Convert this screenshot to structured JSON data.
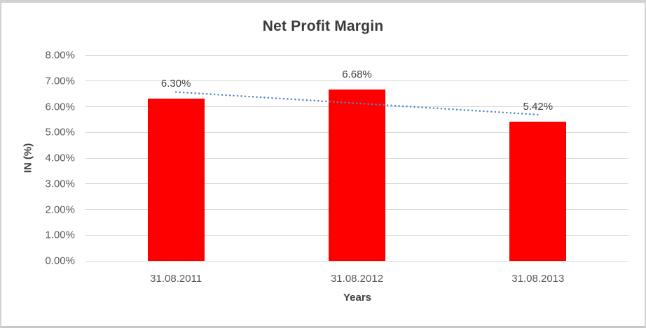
{
  "chart_data": {
    "type": "bar",
    "title": "Net Profit Margin",
    "xlabel": "Years",
    "ylabel": "IN (%)",
    "categories": [
      "31.08.2011",
      "31.08.2012",
      "31.08.2013"
    ],
    "values": [
      6.3,
      6.68,
      5.42
    ],
    "data_labels": [
      "6.30%",
      "6.68%",
      "5.42%"
    ],
    "ytick_labels": [
      "0.00%",
      "1.00%",
      "2.00%",
      "3.00%",
      "4.00%",
      "5.00%",
      "6.00%",
      "7.00%",
      "8.00%"
    ],
    "ylim": [
      0,
      8
    ],
    "ytick_step": 1,
    "grid": "horizontal",
    "legend": "none",
    "bar_color": "#ff0000",
    "gridline_color": "#d9d9d9",
    "trendline": {
      "type": "linear",
      "style": "dotted",
      "color": "#4a89c8",
      "start_value": 6.57,
      "end_value": 5.69
    }
  }
}
